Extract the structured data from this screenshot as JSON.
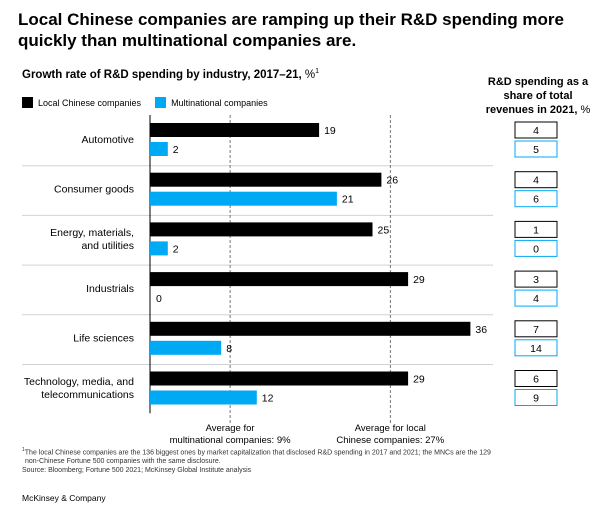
{
  "headline": "Local Chinese companies are ramping up their R&D spending more quickly than multinational companies are.",
  "chart_data": {
    "type": "bar",
    "orientation": "horizontal",
    "title": "Growth rate of R&D spending by industry, 2017–21,",
    "title_unit": "%",
    "title_footnote_mark": "1",
    "categories": [
      "Automotive",
      "Consumer goods",
      "Energy, materials, and utilities",
      "Industrials",
      "Life sciences",
      "Technology, media, and telecommunications"
    ],
    "category_lines": [
      [
        "Automotive"
      ],
      [
        "Consumer goods"
      ],
      [
        "Energy, materials,",
        "and utilities"
      ],
      [
        "Industrials"
      ],
      [
        "Life sciences"
      ],
      [
        "Technology, media, and",
        "telecommunications"
      ]
    ],
    "series": [
      {
        "name": "Local Chinese companies",
        "color": "#000000",
        "values": [
          19,
          26,
          25,
          29,
          36,
          29
        ]
      },
      {
        "name": "Multinational companies",
        "color": "#00a9f4",
        "values": [
          2,
          21,
          2,
          0,
          8,
          12
        ]
      }
    ],
    "xlim": [
      0,
      40
    ],
    "reference_lines": [
      {
        "value": 9,
        "label_lines": [
          "Average for",
          "multinational companies: 9%"
        ]
      },
      {
        "value": 27,
        "label_lines": [
          "Average for local",
          "Chinese companies: 27%"
        ]
      }
    ],
    "side_table": {
      "title": "R&D spending as a share of total revenues in 2021,",
      "title_unit": "%",
      "title_lines": [
        "R&D spending as a",
        "share of total",
        "revenues in 2021,"
      ],
      "local": [
        4,
        4,
        1,
        3,
        7,
        6
      ],
      "multinational": [
        5,
        6,
        0,
        4,
        14,
        9
      ]
    }
  },
  "footnote": {
    "mark": "1",
    "text1": "The local Chinese companies are the 136 biggest ones by market capitalization that disclosed R&D spending in 2017 and 2021; the MNCs are the 129",
    "text2": "non-Chinese Fortune 500 companies with the same disclosure.",
    "source": "Source: Bloomberg; Fortune 500 2021; McKinsey Global Institute analysis"
  },
  "brand": "McKinsey & Company"
}
